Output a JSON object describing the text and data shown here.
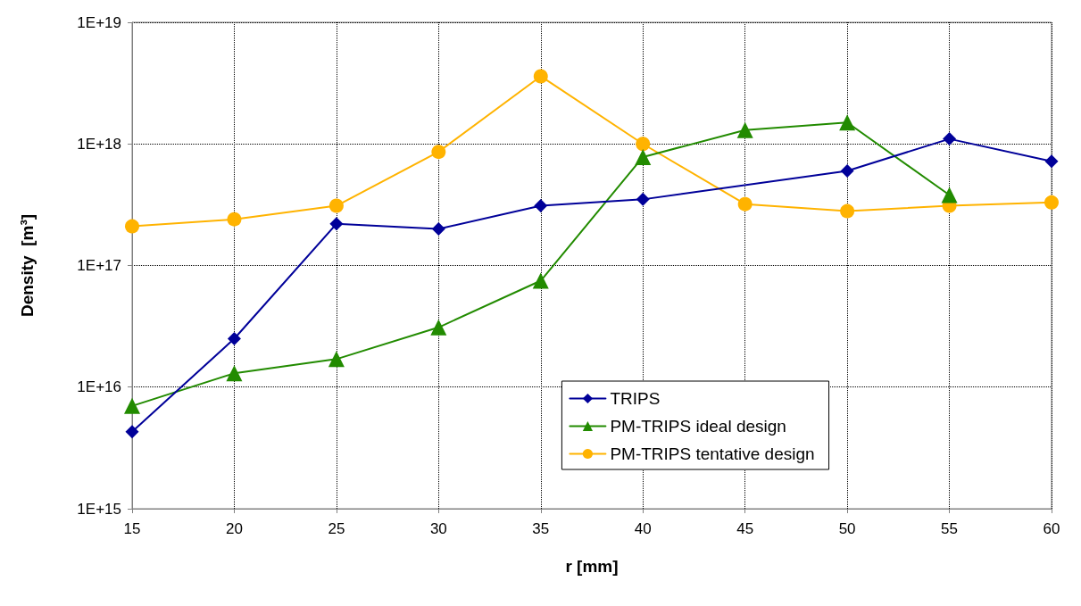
{
  "chart_data": {
    "type": "line",
    "xlabel": "r [mm]",
    "ylabel": "Density  [m³]",
    "x": [
      15,
      20,
      25,
      30,
      35,
      40,
      45,
      50,
      55,
      60
    ],
    "series": [
      {
        "name": "TRIPS",
        "color": "#000099",
        "marker": "diamond",
        "values": [
          4300000000000000.0,
          2.5e+16,
          2.2e+17,
          2e+17,
          3.1e+17,
          3.5e+17,
          null,
          6e+17,
          1.1e+18,
          7.2e+17
        ]
      },
      {
        "name": "PM-TRIPS ideal design",
        "color": "#228b00",
        "marker": "triangle",
        "values": [
          7000000000000000.0,
          1.3e+16,
          1.7e+16,
          3.1e+16,
          7.5e+16,
          7.8e+17,
          1.3e+18,
          1.5e+18,
          3.8e+17,
          null
        ]
      },
      {
        "name": "PM-TRIPS tentative design",
        "color": "#ffb300",
        "marker": "circle",
        "values": [
          2.1e+17,
          2.4e+17,
          3.1e+17,
          8.6e+17,
          3.6e+18,
          1e+18,
          3.2e+17,
          2.8e+17,
          3.1e+17,
          3.3e+17
        ]
      }
    ],
    "log": "y",
    "xlim": [
      15,
      60
    ],
    "xticks": [
      15,
      20,
      25,
      30,
      35,
      40,
      45,
      50,
      55,
      60
    ],
    "ylim": [
      1000000000000000.0,
      1e+19
    ],
    "yticks": [
      {
        "value": 1000000000000000.0,
        "label": "1E+15"
      },
      {
        "value": 1e+16,
        "label": "1E+16"
      },
      {
        "value": 1e+17,
        "label": "1E+17"
      },
      {
        "value": 1e+18,
        "label": "1E+18"
      },
      {
        "value": 1e+19,
        "label": "1E+19"
      }
    ],
    "grid": true,
    "legend": "bottom",
    "line_style": "solid"
  }
}
